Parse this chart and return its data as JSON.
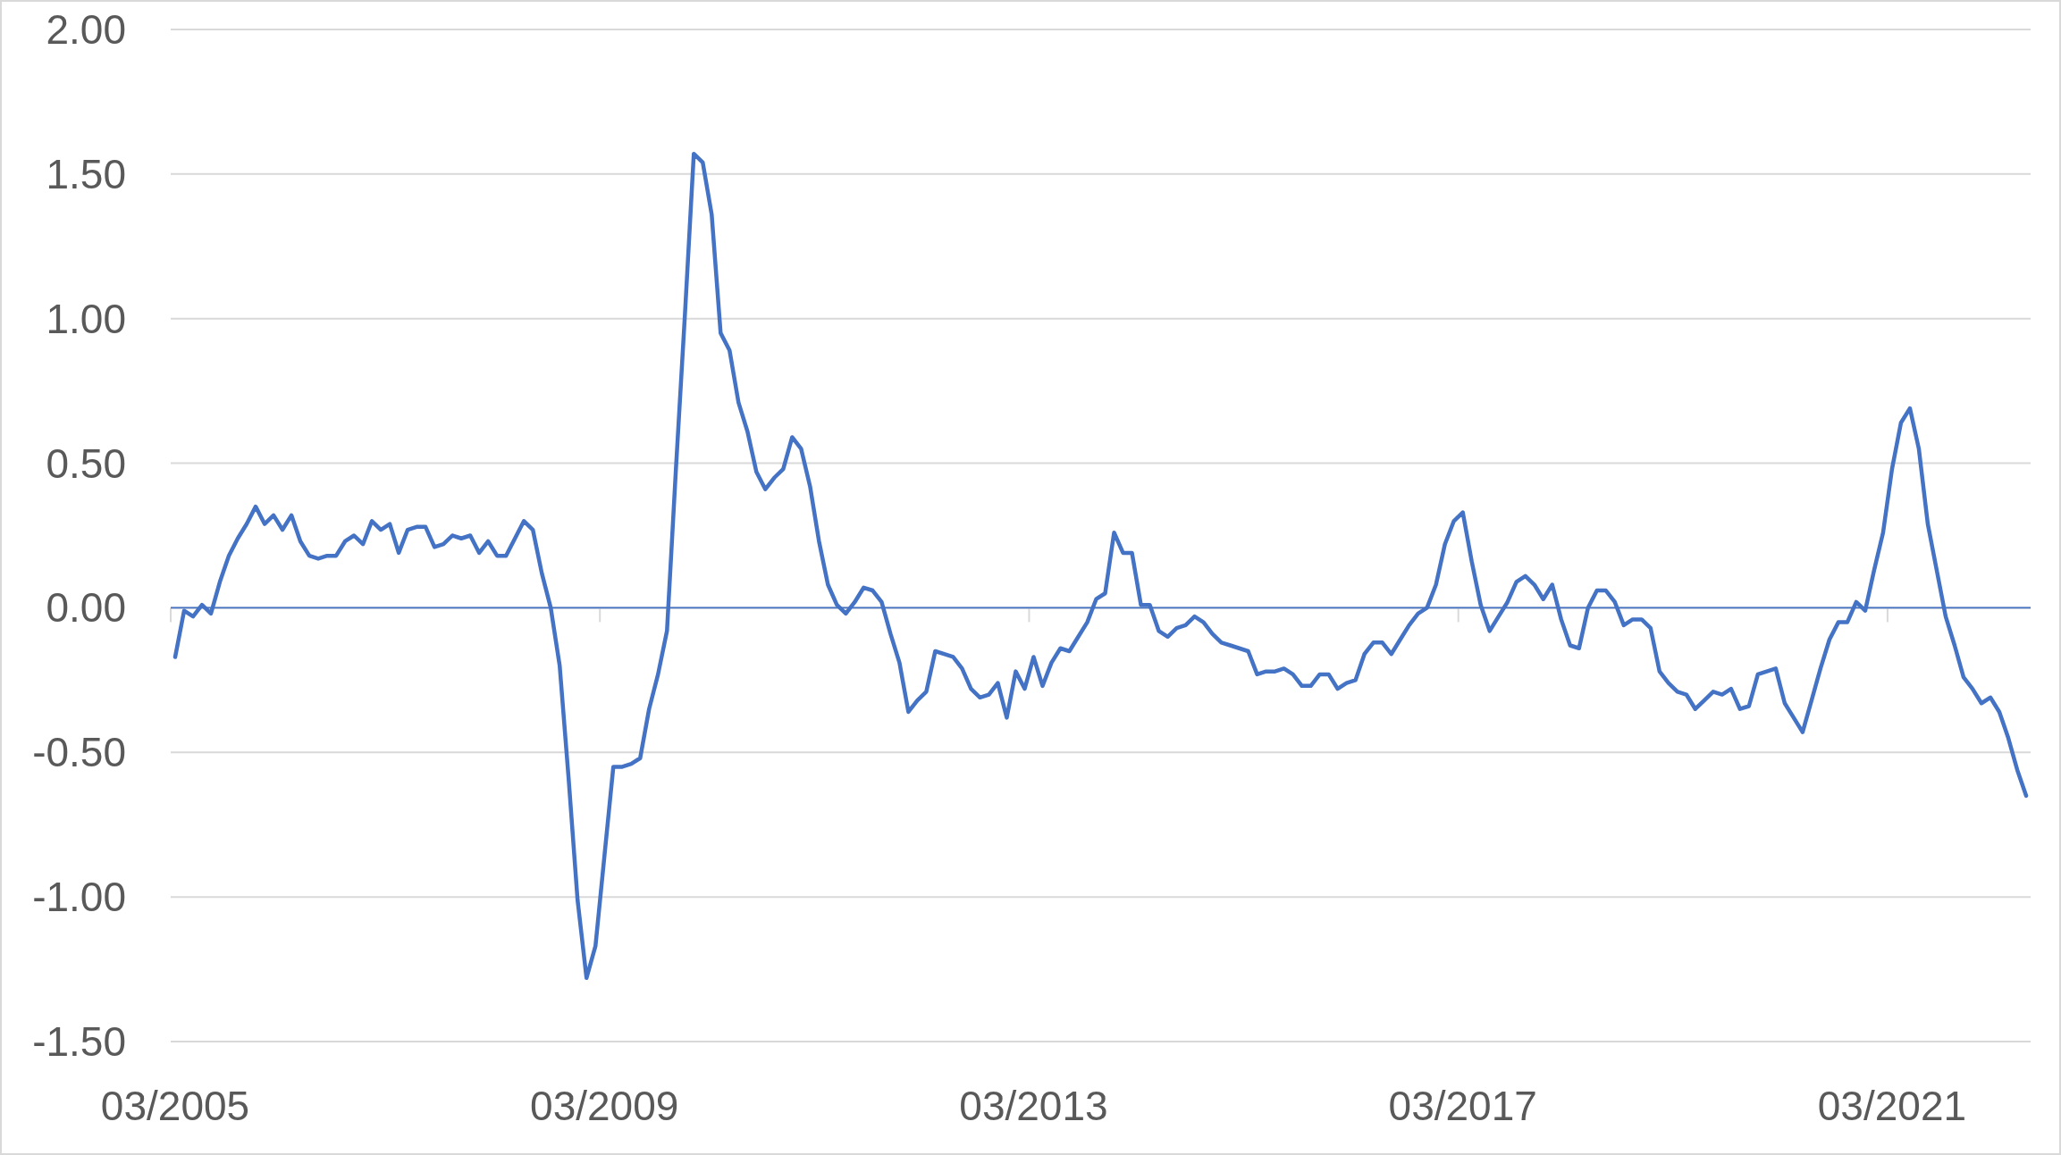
{
  "chart_data": {
    "type": "line",
    "categories": [
      "03/2005",
      null,
      null,
      null,
      null,
      null,
      null,
      null,
      null,
      null,
      null,
      null,
      null,
      null,
      null,
      null,
      null,
      null,
      null,
      null,
      null,
      null,
      null,
      null,
      null,
      null,
      null,
      null,
      null,
      null,
      null,
      null,
      null,
      null,
      null,
      null,
      null,
      null,
      null,
      null,
      null,
      null,
      null,
      null,
      null,
      null,
      null,
      null,
      "03/2009",
      null,
      null,
      null,
      null,
      null,
      null,
      null,
      null,
      null,
      null,
      null,
      null,
      null,
      null,
      null,
      null,
      null,
      null,
      null,
      null,
      null,
      null,
      null,
      null,
      null,
      null,
      null,
      null,
      null,
      null,
      null,
      null,
      null,
      null,
      null,
      null,
      null,
      null,
      null,
      null,
      null,
      null,
      null,
      null,
      null,
      null,
      null,
      "03/2013",
      null,
      null,
      null,
      null,
      null,
      null,
      null,
      null,
      null,
      null,
      null,
      null,
      null,
      null,
      null,
      null,
      null,
      null,
      null,
      null,
      null,
      null,
      null,
      null,
      null,
      null,
      null,
      null,
      null,
      null,
      null,
      null,
      null,
      null,
      null,
      null,
      null,
      null,
      null,
      null,
      null,
      null,
      null,
      null,
      null,
      null,
      null,
      "03/2017",
      null,
      null,
      null,
      null,
      null,
      null,
      null,
      null,
      null,
      null,
      null,
      null,
      null,
      null,
      null,
      null,
      null,
      null,
      null,
      null,
      null,
      null,
      null,
      null,
      null,
      null,
      null,
      null,
      null,
      null,
      null,
      null,
      null,
      null,
      null,
      null,
      null,
      null,
      null,
      null,
      null,
      null,
      null,
      null,
      null,
      null,
      null,
      "03/2021",
      null,
      null,
      null,
      null,
      null,
      null,
      null,
      null,
      null,
      null,
      null,
      null,
      null,
      null,
      null
    ],
    "series": [
      {
        "color": "#4472c4",
        "values": [
          -0.17,
          -0.01,
          -0.03,
          0.01,
          -0.02,
          0.09,
          0.18,
          0.24,
          0.29,
          0.35,
          0.29,
          0.32,
          0.27,
          0.32,
          0.23,
          0.18,
          0.17,
          0.18,
          0.18,
          0.23,
          0.25,
          0.22,
          0.3,
          0.27,
          0.29,
          0.19,
          0.27,
          0.28,
          0.28,
          0.21,
          0.22,
          0.25,
          0.24,
          0.25,
          0.19,
          0.23,
          0.18,
          0.18,
          0.24,
          0.3,
          0.27,
          0.12,
          0.0,
          -0.2,
          -0.59,
          -1.01,
          -1.28,
          -1.17,
          -0.86,
          -0.55,
          -0.55,
          -0.54,
          -0.52,
          -0.35,
          -0.23,
          -0.08,
          0.48,
          1.01,
          1.57,
          1.54,
          1.36,
          0.95,
          0.89,
          0.71,
          0.61,
          0.47,
          0.41,
          0.45,
          0.48,
          0.59,
          0.55,
          0.42,
          0.23,
          0.08,
          0.01,
          -0.02,
          0.02,
          0.07,
          0.06,
          0.02,
          -0.09,
          -0.19,
          -0.36,
          -0.32,
          -0.29,
          -0.15,
          -0.16,
          -0.17,
          -0.21,
          -0.28,
          -0.31,
          -0.3,
          -0.26,
          -0.38,
          -0.22,
          -0.28,
          -0.17,
          -0.27,
          -0.19,
          -0.14,
          -0.15,
          -0.1,
          -0.05,
          0.03,
          0.05,
          0.26,
          0.19,
          0.19,
          0.01,
          0.01,
          -0.08,
          -0.1,
          -0.07,
          -0.06,
          -0.03,
          -0.05,
          -0.09,
          -0.12,
          -0.13,
          -0.14,
          -0.15,
          -0.23,
          -0.22,
          -0.22,
          -0.21,
          -0.23,
          -0.27,
          -0.27,
          -0.23,
          -0.23,
          -0.28,
          -0.26,
          -0.25,
          -0.16,
          -0.12,
          -0.12,
          -0.16,
          -0.11,
          -0.06,
          -0.02,
          0.0,
          0.08,
          0.22,
          0.3,
          0.33,
          0.16,
          0.01,
          -0.08,
          -0.03,
          0.02,
          0.09,
          0.11,
          0.08,
          0.03,
          0.08,
          -0.04,
          -0.13,
          -0.14,
          0.0,
          0.06,
          0.06,
          0.02,
          -0.06,
          -0.04,
          -0.04,
          -0.07,
          -0.22,
          -0.26,
          -0.29,
          -0.3,
          -0.35,
          -0.32,
          -0.29,
          -0.3,
          -0.28,
          -0.35,
          -0.34,
          -0.23,
          -0.22,
          -0.21,
          -0.33,
          -0.38,
          -0.43,
          -0.32,
          -0.21,
          -0.11,
          -0.05,
          -0.05,
          0.02,
          -0.01,
          0.13,
          0.26,
          0.48,
          0.64,
          0.69,
          0.55,
          0.29,
          0.13,
          -0.03,
          -0.13,
          -0.24,
          -0.28,
          -0.33,
          -0.31,
          -0.36,
          -0.45,
          -0.56,
          -0.65
        ]
      }
    ],
    "ylim": [
      -1.5,
      2
    ],
    "yticks": [
      {
        "value": -1.5,
        "label": "-1.50"
      },
      {
        "value": -1,
        "label": "-1.00"
      },
      {
        "value": -0.5,
        "label": "-0.50"
      },
      {
        "value": 0,
        "label": "0.00"
      },
      {
        "value": 0.5,
        "label": "0.50"
      },
      {
        "value": 1,
        "label": "1.00"
      },
      {
        "value": 1.5,
        "label": "1.50"
      },
      {
        "value": 2,
        "label": "2.00"
      }
    ],
    "grid": "y",
    "ref_lines": [
      {
        "axis": "y",
        "value": 0,
        "color": "#4472c4"
      }
    ]
  }
}
